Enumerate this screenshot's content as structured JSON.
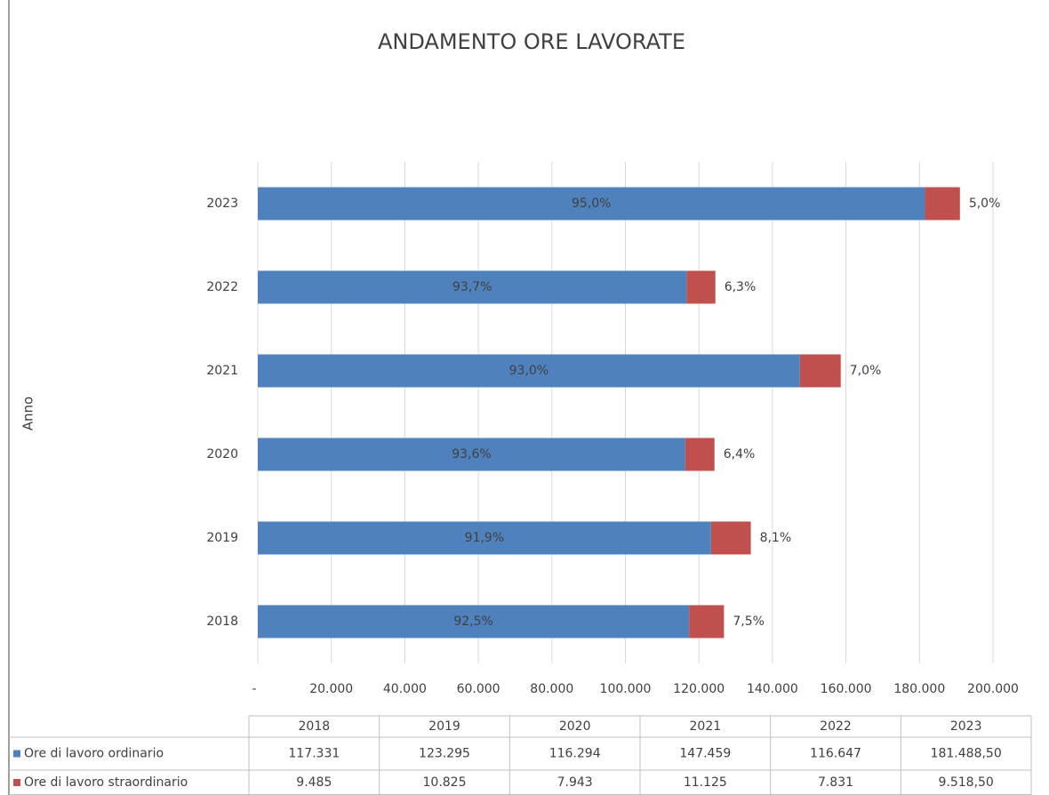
{
  "chart_data": {
    "type": "stacked_bar_horizontal",
    "title": "ANDAMENTO ORE LAVORATE",
    "y_label": "Anno",
    "categories": [
      "2018",
      "2019",
      "2020",
      "2021",
      "2022",
      "2023"
    ],
    "series": [
      {
        "name": "Ore di lavoro ordinario",
        "color": "#4f81bd",
        "values": [
          117331,
          123295,
          116294,
          147459,
          116647,
          181488.5
        ],
        "value_labels": [
          "117.331",
          "123.295",
          "116.294",
          "147.459",
          "116.647",
          "181.488,50"
        ],
        "data_labels": [
          "92,5%",
          "91,9%",
          "93,6%",
          "93,0%",
          "93,7%",
          "95,0%"
        ]
      },
      {
        "name": "Ore di lavoro straordinario",
        "color": "#c0504d",
        "values": [
          9485,
          10825,
          7943,
          11125,
          7831,
          9518.5
        ],
        "value_labels": [
          "9.485",
          "10.825",
          "7.943",
          "11.125",
          "7.831",
          "9.518,50"
        ],
        "data_labels": [
          "7,5%",
          "8,1%",
          "6,4%",
          "7,0%",
          "6,3%",
          "5,0%"
        ]
      }
    ],
    "xlim": [
      0,
      200000
    ],
    "xticks": [
      {
        "value": 0,
        "label": "-"
      },
      {
        "value": 20000,
        "label": "20.000"
      },
      {
        "value": 40000,
        "label": "40.000"
      },
      {
        "value": 60000,
        "label": "60.000"
      },
      {
        "value": 80000,
        "label": "80.000"
      },
      {
        "value": 100000,
        "label": "100.000"
      },
      {
        "value": 120000,
        "label": "120.000"
      },
      {
        "value": 140000,
        "label": "140.000"
      },
      {
        "value": 160000,
        "label": "160.000"
      },
      {
        "value": 180000,
        "label": "180.000"
      },
      {
        "value": 200000,
        "label": "200.000"
      }
    ],
    "grid": true
  }
}
